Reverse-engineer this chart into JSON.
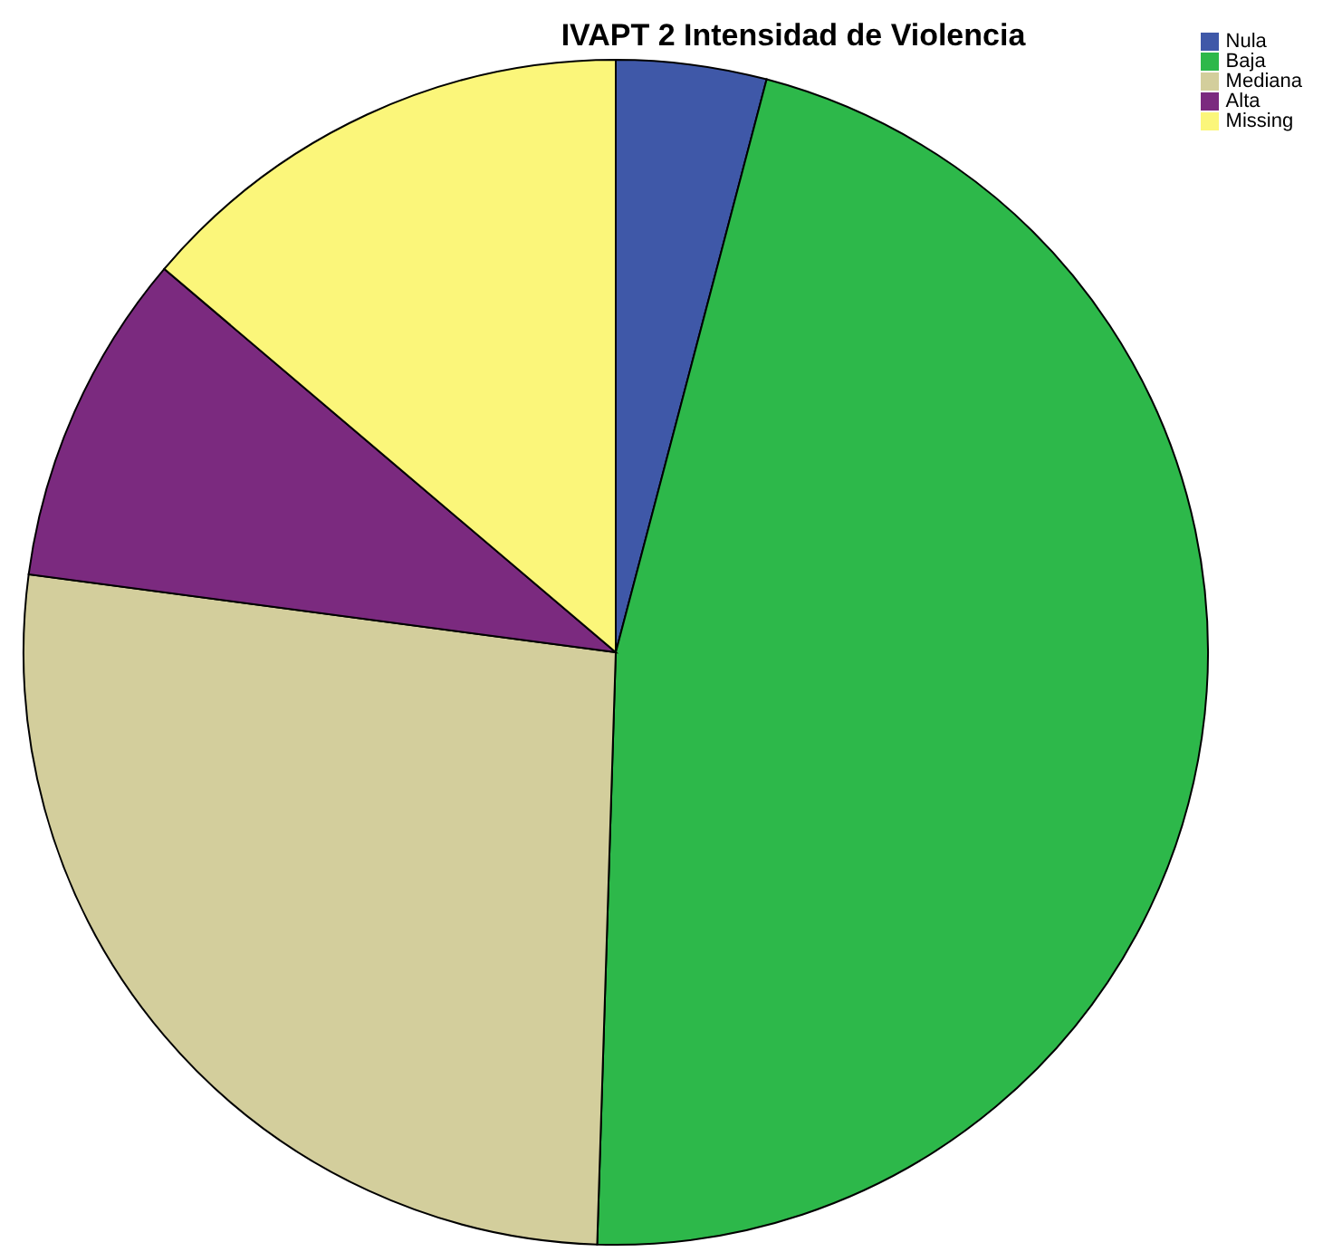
{
  "chart_data": {
    "type": "pie",
    "title": "IVAPT 2 Intensidad de Violencia",
    "categories": [
      "Nula",
      "Baja",
      "Mediana",
      "Alta",
      "Missing"
    ],
    "values": [
      4.1,
      46.4,
      26.6,
      9.1,
      13.8
    ],
    "colors": [
      "#3f58a8",
      "#2db84a",
      "#d3ce9c",
      "#7b2a7f",
      "#fbf67a"
    ],
    "legend": "top right"
  }
}
